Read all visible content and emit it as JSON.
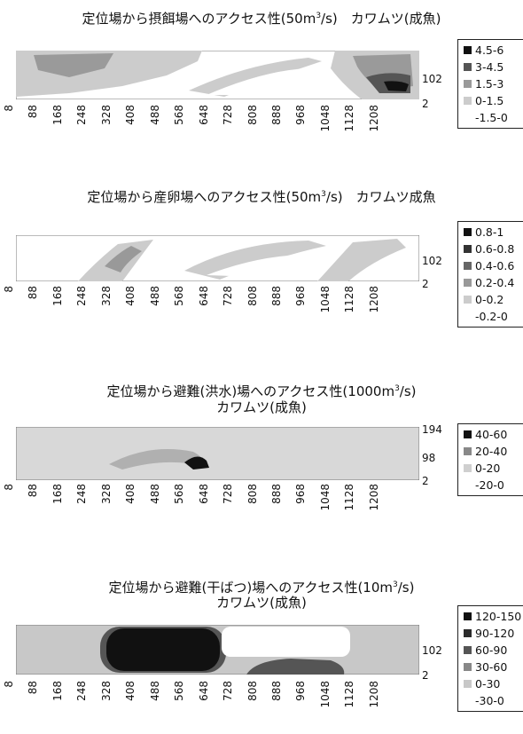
{
  "chart_data": [
    {
      "type": "heatmap",
      "title_pre": "定位場から摂餌場へのアクセス性(50m",
      "title_sup": "3",
      "title_post": "/s)　カワムツ(成魚)",
      "x_ticks": [
        "8",
        "88",
        "168",
        "248",
        "328",
        "408",
        "488",
        "568",
        "648",
        "728",
        "808",
        "888",
        "968",
        "1048",
        "1128",
        "1208"
      ],
      "y_ticks": [
        "102",
        "2"
      ],
      "legend": [
        {
          "label": "4.5-6",
          "color": "#111111"
        },
        {
          "label": "3-4.5",
          "color": "#555555"
        },
        {
          "label": "1.5-3",
          "color": "#9a9a9a"
        },
        {
          "label": "0-1.5",
          "color": "#cccccc"
        },
        {
          "label": "-1.5-0",
          "color": "#ffffff"
        }
      ]
    },
    {
      "type": "heatmap",
      "title_pre": "定位場から産卵場へのアクセス性(50m",
      "title_sup": "3",
      "title_post": "/s)　カワムツ成魚",
      "x_ticks": [
        "8",
        "88",
        "168",
        "248",
        "328",
        "408",
        "488",
        "568",
        "648",
        "728",
        "808",
        "888",
        "968",
        "1048",
        "1128",
        "1208"
      ],
      "y_ticks": [
        "102",
        "2"
      ],
      "legend": [
        {
          "label": "0.8-1",
          "color": "#111111"
        },
        {
          "label": "0.6-0.8",
          "color": "#333333"
        },
        {
          "label": "0.4-0.6",
          "color": "#666666"
        },
        {
          "label": "0.2-0.4",
          "color": "#999999"
        },
        {
          "label": "0-0.2",
          "color": "#cccccc"
        },
        {
          "label": "-0.2-0",
          "color": "#ffffff"
        }
      ]
    },
    {
      "type": "heatmap",
      "title_pre": "定位場から避難(洪水)場へのアクセス性(1000m",
      "title_sup": "3",
      "title_post": "/s)",
      "title_line2": "カワムツ(成魚)",
      "x_ticks": [
        "8",
        "88",
        "168",
        "248",
        "328",
        "408",
        "488",
        "568",
        "648",
        "728",
        "808",
        "888",
        "968",
        "1048",
        "1128",
        "1208"
      ],
      "y_ticks": [
        "194",
        "98",
        "2"
      ],
      "legend": [
        {
          "label": "40-60",
          "color": "#111111"
        },
        {
          "label": "20-40",
          "color": "#888888"
        },
        {
          "label": "0-20",
          "color": "#cfcfcf"
        },
        {
          "label": "-20-0",
          "color": "#ffffff"
        }
      ]
    },
    {
      "type": "heatmap",
      "title_pre": "定位場から避難(干ばつ)場へのアクセス性(10m",
      "title_sup": "3",
      "title_post": "/s)",
      "title_line2": "カワムツ(成魚)",
      "x_ticks": [
        "8",
        "88",
        "168",
        "248",
        "328",
        "408",
        "488",
        "568",
        "648",
        "728",
        "808",
        "888",
        "968",
        "1048",
        "1128",
        "1208"
      ],
      "y_ticks": [
        "102",
        "2"
      ],
      "legend": [
        {
          "label": "120-150",
          "color": "#111111"
        },
        {
          "label": "90-120",
          "color": "#2b2b2b"
        },
        {
          "label": "60-90",
          "color": "#555555"
        },
        {
          "label": "30-60",
          "color": "#888888"
        },
        {
          "label": "0-30",
          "color": "#c8c8c8"
        },
        {
          "label": "-30-0",
          "color": "#ffffff"
        }
      ]
    }
  ]
}
